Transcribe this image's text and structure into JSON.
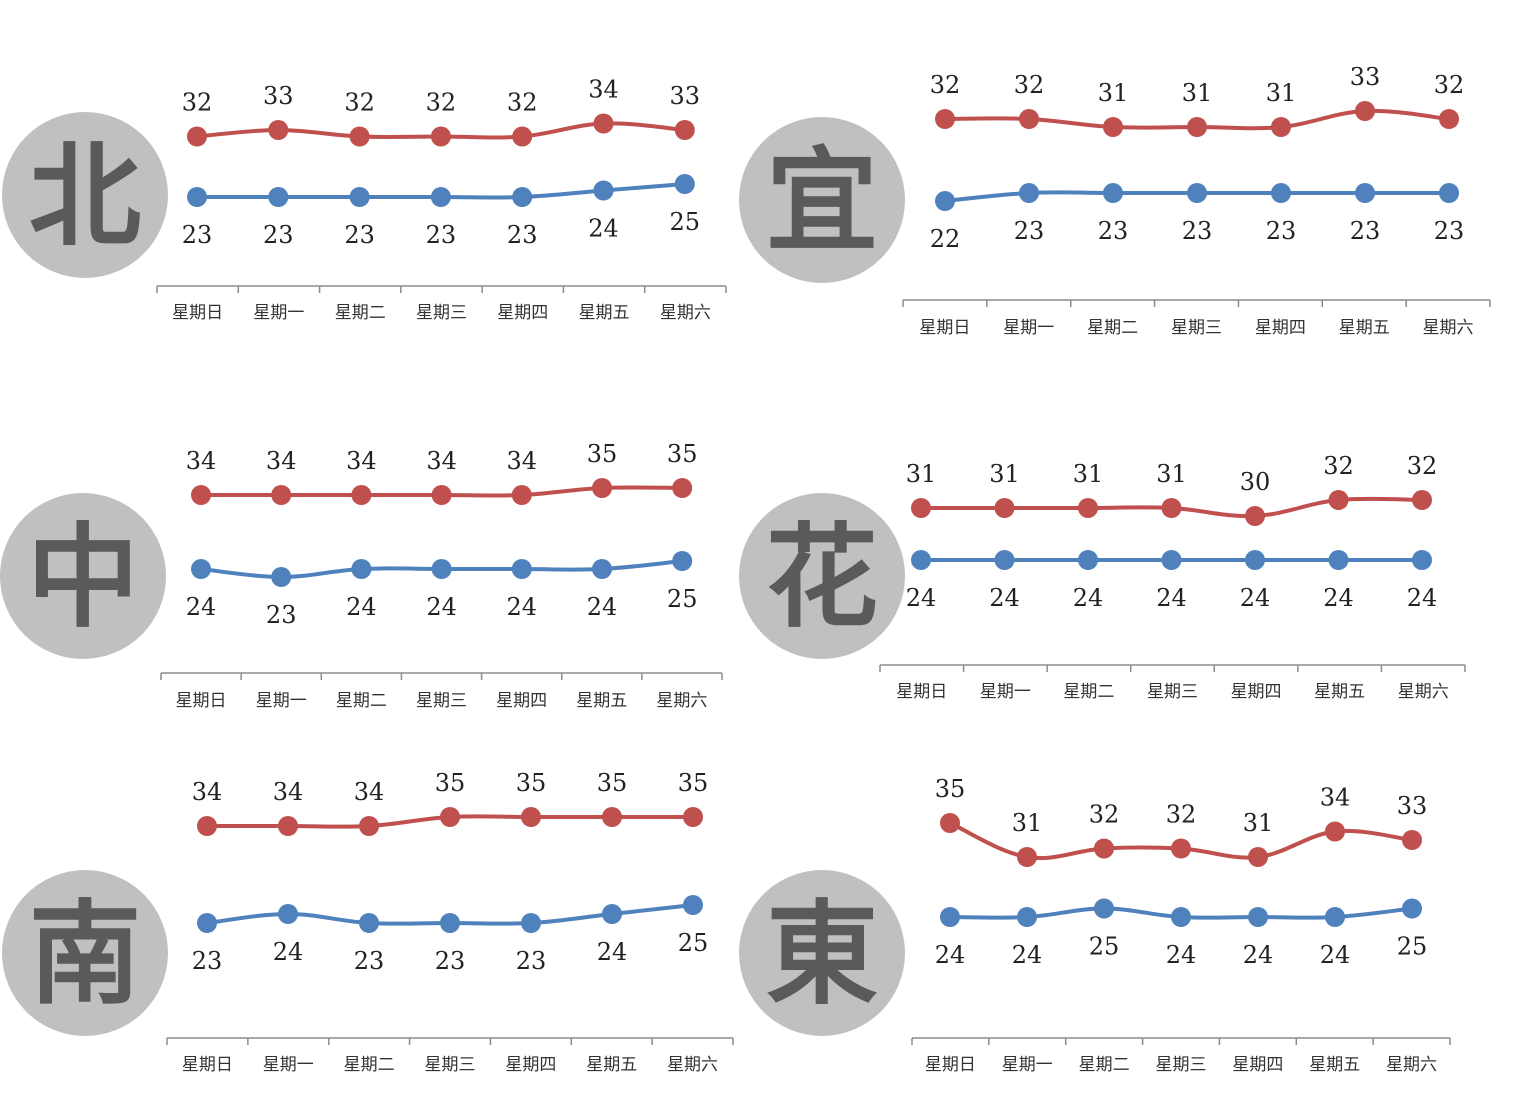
{
  "colors": {
    "high": "#c0504d",
    "low": "#4f81bd",
    "badge": "#c0c0c0",
    "badge_text": "#5a5a5a",
    "axis": "#8c8c8c"
  },
  "chart_data": [
    {
      "type": "line",
      "region": "北",
      "categories": [
        "星期日",
        "星期一",
        "星期二",
        "星期三",
        "星期四",
        "星期五",
        "星期六"
      ],
      "series": [
        {
          "values": [
            32,
            33,
            32,
            32,
            32,
            34,
            33
          ]
        },
        {
          "values": [
            23,
            23,
            23,
            23,
            23,
            24,
            25
          ]
        }
      ]
    },
    {
      "type": "line",
      "region": "宜",
      "categories": [
        "星期日",
        "星期一",
        "星期二",
        "星期三",
        "星期四",
        "星期五",
        "星期六"
      ],
      "series": [
        {
          "values": [
            32,
            32,
            31,
            31,
            31,
            33,
            32
          ]
        },
        {
          "values": [
            22,
            23,
            23,
            23,
            23,
            23,
            23
          ]
        }
      ]
    },
    {
      "type": "line",
      "region": "中",
      "categories": [
        "星期日",
        "星期一",
        "星期二",
        "星期三",
        "星期四",
        "星期五",
        "星期六"
      ],
      "series": [
        {
          "values": [
            34,
            34,
            34,
            34,
            34,
            35,
            35
          ]
        },
        {
          "values": [
            24,
            23,
            24,
            24,
            24,
            24,
            25
          ]
        }
      ]
    },
    {
      "type": "line",
      "region": "花",
      "categories": [
        "星期日",
        "星期一",
        "星期二",
        "星期三",
        "星期四",
        "星期五",
        "星期六"
      ],
      "series": [
        {
          "values": [
            31,
            31,
            31,
            31,
            30,
            32,
            32
          ]
        },
        {
          "values": [
            24,
            24,
            24,
            24,
            24,
            24,
            24
          ]
        }
      ]
    },
    {
      "type": "line",
      "region": "南",
      "categories": [
        "星期日",
        "星期一",
        "星期二",
        "星期三",
        "星期四",
        "星期五",
        "星期六"
      ],
      "series": [
        {
          "values": [
            34,
            34,
            34,
            35,
            35,
            35,
            35
          ]
        },
        {
          "values": [
            23,
            24,
            23,
            23,
            23,
            24,
            25
          ]
        }
      ]
    },
    {
      "type": "line",
      "region": "東",
      "categories": [
        "星期日",
        "星期一",
        "星期二",
        "星期三",
        "星期四",
        "星期五",
        "星期六"
      ],
      "series": [
        {
          "values": [
            35,
            31,
            32,
            32,
            31,
            34,
            33
          ]
        },
        {
          "values": [
            24,
            24,
            25,
            24,
            24,
            24,
            25
          ]
        }
      ]
    }
  ]
}
